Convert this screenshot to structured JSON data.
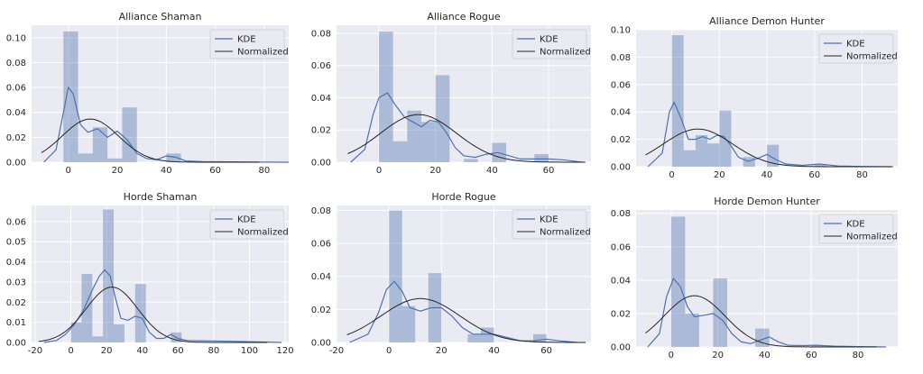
{
  "chart_data": [
    {
      "type": "histogram",
      "title": "Alliance Shaman",
      "xlim": [
        -15,
        90
      ],
      "ylim": [
        0,
        0.11
      ],
      "xticks": [
        0,
        20,
        40,
        60,
        80
      ],
      "yticks": [
        0.0,
        0.02,
        0.04,
        0.06,
        0.08,
        0.1
      ],
      "ytick_labels": [
        "0.00",
        "0.02",
        "0.04",
        "0.06",
        "0.08",
        "0.10"
      ],
      "bin_width": 6,
      "bins": [
        {
          "x0": -2,
          "value": 0.105
        },
        {
          "x0": 4,
          "value": 0.007
        },
        {
          "x0": 10,
          "value": 0.028
        },
        {
          "x0": 16,
          "value": 0.003
        },
        {
          "x0": 22,
          "value": 0.044
        },
        {
          "x0": 40,
          "value": 0.007
        }
      ],
      "kde": {
        "x": [
          -10,
          -5,
          -2,
          0,
          2,
          5,
          8,
          12,
          16,
          20,
          24,
          28,
          32,
          36,
          40,
          44,
          48,
          55,
          65,
          80,
          90
        ],
        "y": [
          0.0,
          0.01,
          0.04,
          0.06,
          0.055,
          0.03,
          0.024,
          0.027,
          0.02,
          0.025,
          0.018,
          0.007,
          0.003,
          0.002,
          0.005,
          0.004,
          0.001,
          0.0005,
          0.0003,
          0.0001,
          0.0
        ]
      },
      "normal": {
        "mean": 9,
        "sd": 11.5
      },
      "legend": [
        "KDE",
        "Normalized"
      ]
    },
    {
      "type": "histogram",
      "title": "Alliance Rogue",
      "xlim": [
        -15,
        75
      ],
      "ylim": [
        0,
        0.085
      ],
      "xticks": [
        0,
        20,
        40,
        60
      ],
      "yticks": [
        0.0,
        0.02,
        0.04,
        0.06,
        0.08
      ],
      "ytick_labels": [
        "0.00",
        "0.02",
        "0.04",
        "0.06",
        "0.08"
      ],
      "bin_width": 5,
      "bins": [
        {
          "x0": 0,
          "value": 0.081
        },
        {
          "x0": 5,
          "value": 0.013
        },
        {
          "x0": 10,
          "value": 0.032
        },
        {
          "x0": 15,
          "value": 0.025
        },
        {
          "x0": 20,
          "value": 0.054
        },
        {
          "x0": 30,
          "value": 0.002
        },
        {
          "x0": 40,
          "value": 0.012
        },
        {
          "x0": 55,
          "value": 0.005
        }
      ],
      "kde": {
        "x": [
          -10,
          -5,
          -2,
          0,
          3,
          6,
          9,
          12,
          15,
          18,
          21,
          24,
          27,
          30,
          34,
          38,
          42,
          46,
          50,
          55,
          60,
          65,
          72
        ],
        "y": [
          0.0,
          0.008,
          0.03,
          0.04,
          0.043,
          0.035,
          0.028,
          0.025,
          0.022,
          0.026,
          0.025,
          0.018,
          0.009,
          0.004,
          0.003,
          0.005,
          0.006,
          0.004,
          0.002,
          0.002,
          0.002,
          0.0015,
          0.0
        ]
      },
      "normal": {
        "mean": 14,
        "sd": 13.5
      },
      "legend": [
        "KDE",
        "Normalized"
      ]
    },
    {
      "type": "histogram",
      "title": "Alliance Demon Hunter",
      "xlim": [
        -15,
        95
      ],
      "ylim": [
        0,
        0.1
      ],
      "xticks": [
        0,
        20,
        40,
        60,
        80
      ],
      "yticks": [
        0.0,
        0.02,
        0.04,
        0.06,
        0.08,
        0.1
      ],
      "ytick_labels": [
        "0.00",
        "0.02",
        "0.04",
        "0.06",
        "0.08",
        "0.10"
      ],
      "bin_width": 5,
      "bins": [
        {
          "x0": 0,
          "value": 0.096
        },
        {
          "x0": 5,
          "value": 0.012
        },
        {
          "x0": 10,
          "value": 0.023
        },
        {
          "x0": 15,
          "value": 0.017
        },
        {
          "x0": 20,
          "value": 0.041
        },
        {
          "x0": 30,
          "value": 0.007
        },
        {
          "x0": 40,
          "value": 0.016
        },
        {
          "x0": 60,
          "value": 0.002
        }
      ],
      "kde": {
        "x": [
          -10,
          -4,
          -1,
          1,
          4,
          7,
          10,
          13,
          16,
          19,
          22,
          25,
          28,
          32,
          36,
          40,
          44,
          48,
          55,
          62,
          70,
          80,
          92
        ],
        "y": [
          0.0,
          0.01,
          0.04,
          0.047,
          0.035,
          0.02,
          0.02,
          0.022,
          0.02,
          0.023,
          0.022,
          0.015,
          0.007,
          0.004,
          0.006,
          0.009,
          0.005,
          0.002,
          0.001,
          0.002,
          0.0005,
          0.0002,
          0.0
        ]
      },
      "normal": {
        "mean": 11,
        "sd": 14.5
      },
      "legend": [
        "KDE",
        "Normalized"
      ]
    },
    {
      "type": "histogram",
      "title": "Horde Shaman",
      "xlim": [
        -22,
        122
      ],
      "ylim": [
        0,
        0.068
      ],
      "xticks": [
        -20,
        0,
        20,
        40,
        60,
        80,
        100,
        120
      ],
      "yticks": [
        0.0,
        0.01,
        0.02,
        0.03,
        0.04,
        0.05,
        0.06
      ],
      "ytick_labels": [
        "0.00",
        "0.01",
        "0.02",
        "0.03",
        "0.04",
        "0.05",
        "0.06"
      ],
      "bin_width": 6,
      "bins": [
        {
          "x0": 0,
          "value": 0.01
        },
        {
          "x0": 6,
          "value": 0.034
        },
        {
          "x0": 12,
          "value": 0.003
        },
        {
          "x0": 18,
          "value": 0.066
        },
        {
          "x0": 24,
          "value": 0.009
        },
        {
          "x0": 36,
          "value": 0.029
        },
        {
          "x0": 56,
          "value": 0.005
        }
      ],
      "kde": {
        "x": [
          -15,
          -8,
          -3,
          2,
          7,
          12,
          16,
          19,
          22,
          25,
          28,
          32,
          36,
          40,
          44,
          48,
          52,
          56,
          60,
          65,
          75,
          90,
          110,
          118
        ],
        "y": [
          0.0,
          0.001,
          0.004,
          0.009,
          0.016,
          0.026,
          0.033,
          0.036,
          0.033,
          0.022,
          0.012,
          0.011,
          0.013,
          0.012,
          0.005,
          0.002,
          0.002,
          0.004,
          0.002,
          0.001,
          0.0008,
          0.0006,
          0.0002,
          0.0
        ]
      },
      "normal": {
        "mean": 23,
        "sd": 14.5
      },
      "legend": [
        "KDE",
        "Normalized"
      ]
    },
    {
      "type": "histogram",
      "title": "Horde Rogue",
      "xlim": [
        -20,
        77
      ],
      "ylim": [
        0,
        0.083
      ],
      "xticks": [
        -20,
        0,
        20,
        40,
        60
      ],
      "yticks": [
        0.0,
        0.02,
        0.04,
        0.06,
        0.08
      ],
      "ytick_labels": [
        "0.00",
        "0.02",
        "0.04",
        "0.06",
        "0.08"
      ],
      "bin_width": 5,
      "bins": [
        {
          "x0": 0,
          "value": 0.08
        },
        {
          "x0": 5,
          "value": 0.022
        },
        {
          "x0": 15,
          "value": 0.042
        },
        {
          "x0": 30,
          "value": 0.005
        },
        {
          "x0": 35,
          "value": 0.009
        },
        {
          "x0": 55,
          "value": 0.005
        }
      ],
      "kde": {
        "x": [
          -15,
          -8,
          -4,
          -1,
          2,
          5,
          8,
          12,
          16,
          20,
          24,
          28,
          32,
          36,
          40,
          45,
          50,
          55,
          60,
          65,
          72
        ],
        "y": [
          0.0,
          0.005,
          0.018,
          0.032,
          0.037,
          0.031,
          0.021,
          0.019,
          0.021,
          0.021,
          0.016,
          0.009,
          0.005,
          0.005,
          0.005,
          0.003,
          0.001,
          0.001,
          0.002,
          0.001,
          0.0
        ]
      },
      "normal": {
        "mean": 12,
        "sd": 15
      },
      "legend": [
        "KDE",
        "Normalized"
      ]
    },
    {
      "type": "histogram",
      "title": "Horde Demon Hunter",
      "xlim": [
        -15,
        97
      ],
      "ylim": [
        0,
        0.082
      ],
      "xticks": [
        0,
        20,
        40,
        60,
        80
      ],
      "yticks": [
        0.0,
        0.02,
        0.04,
        0.06,
        0.08
      ],
      "ytick_labels": [
        "0.00",
        "0.02",
        "0.04",
        "0.06",
        "0.08"
      ],
      "bin_width": 6,
      "bins": [
        {
          "x0": 0,
          "value": 0.078
        },
        {
          "x0": 6,
          "value": 0.02
        },
        {
          "x0": 18,
          "value": 0.041
        },
        {
          "x0": 36,
          "value": 0.011
        },
        {
          "x0": 60,
          "value": 0.001
        }
      ],
      "kde": {
        "x": [
          -10,
          -5,
          -2,
          1,
          4,
          7,
          10,
          14,
          18,
          22,
          26,
          30,
          34,
          38,
          42,
          46,
          50,
          56,
          62,
          70,
          80,
          92
        ],
        "y": [
          0.0,
          0.008,
          0.03,
          0.041,
          0.036,
          0.024,
          0.018,
          0.019,
          0.02,
          0.016,
          0.008,
          0.003,
          0.002,
          0.004,
          0.006,
          0.003,
          0.001,
          0.0008,
          0.001,
          0.0005,
          0.0002,
          0.0
        ]
      },
      "normal": {
        "mean": 10,
        "sd": 13
      },
      "legend": [
        "KDE",
        "Normalized"
      ]
    }
  ]
}
